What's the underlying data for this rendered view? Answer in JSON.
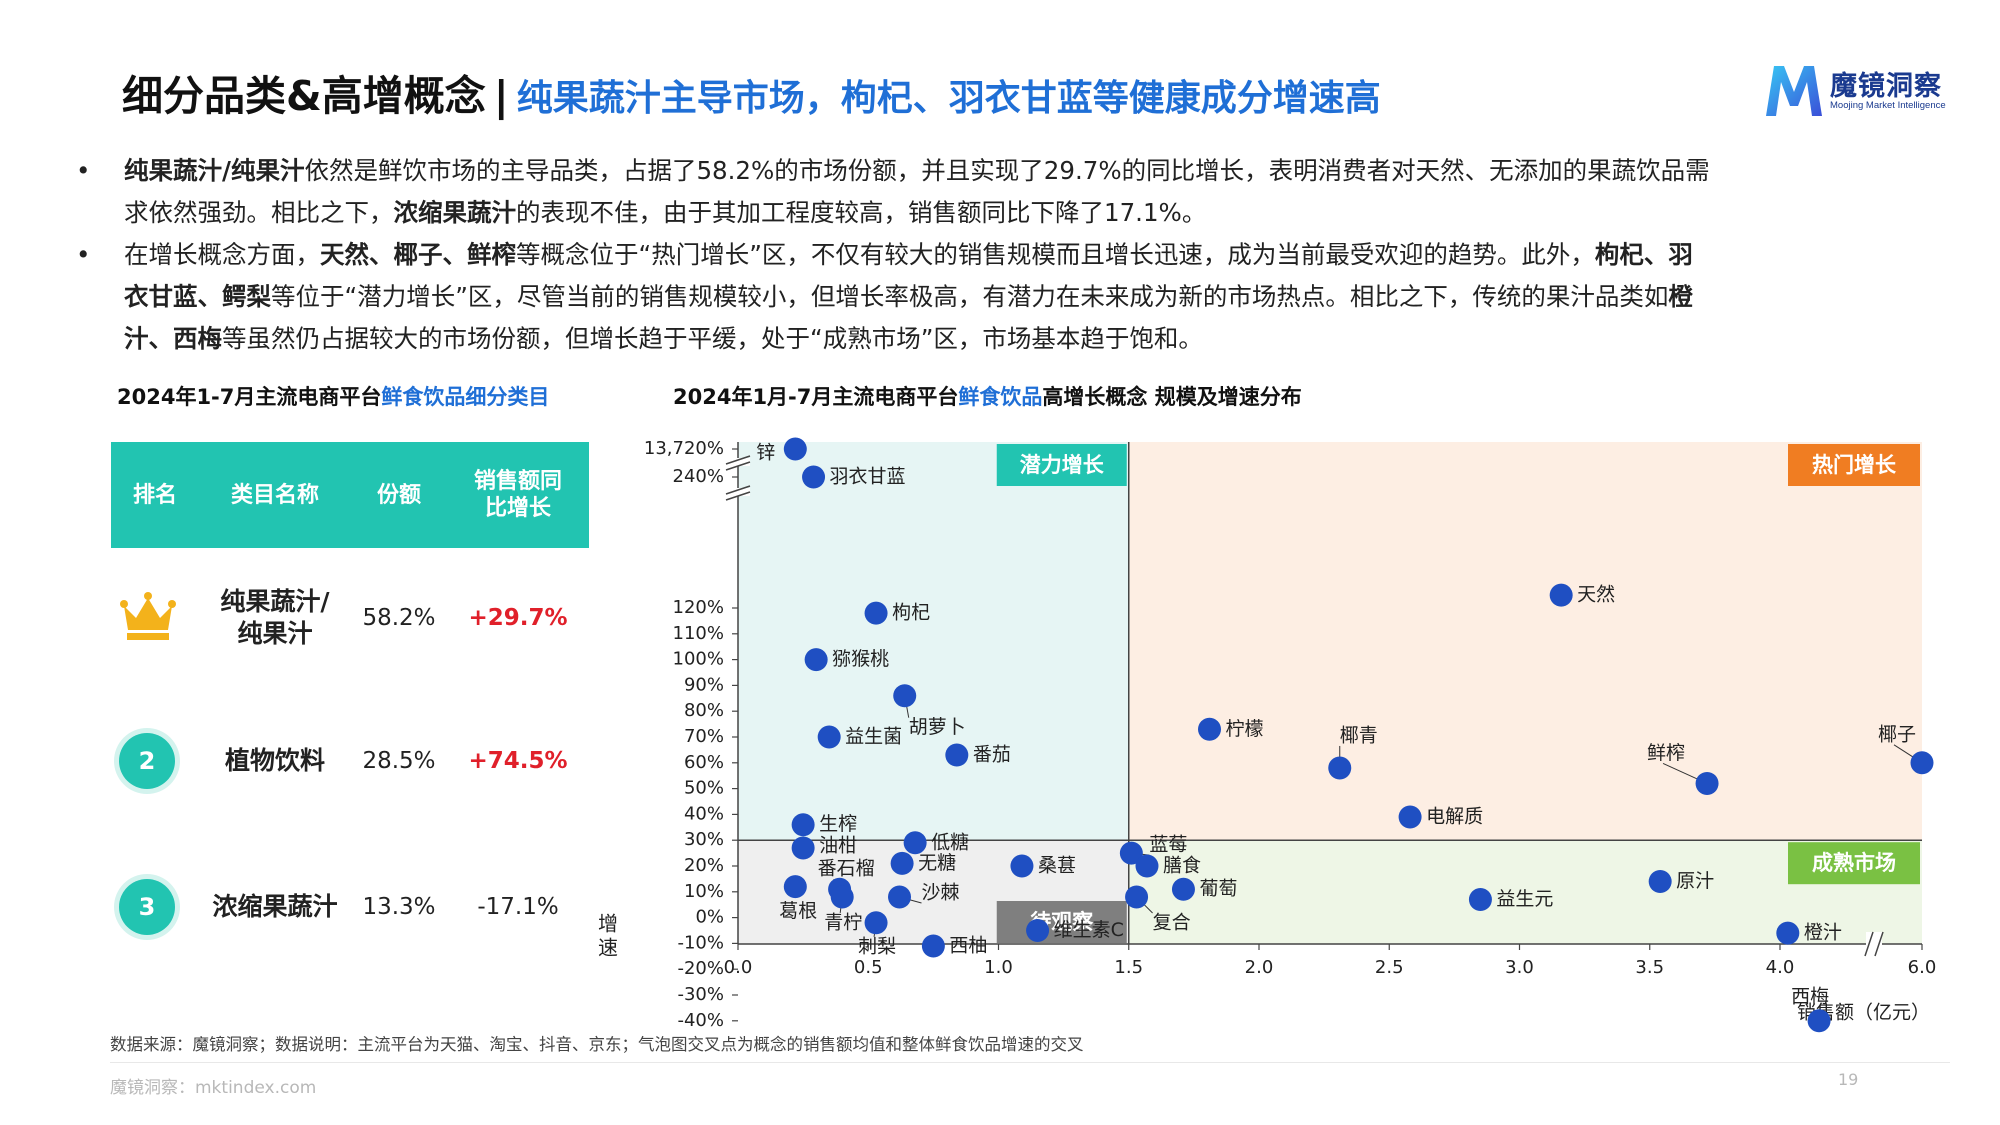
{
  "header": {
    "title_main": "细分品类&高增概念",
    "separator": "|",
    "title_sub": "纯果蔬汁主导市场，枸杞、羽衣甘蓝等健康成分增速高"
  },
  "logo": {
    "name": "魔镜洞察",
    "tagline": "Moojing Market Intelligence"
  },
  "bullets": [
    {
      "dot": "•",
      "lines": [
        [
          {
            "t": "纯果蔬汁/纯果汁",
            "b": true
          },
          {
            "t": "依然是鲜饮市场的主导品类，占据了58.2%的市场份额，并且实现了29.7%的同比增长，表明消费者对天然、无添加的果蔬饮品需"
          }
        ],
        [
          {
            "t": "求依然强劲。相比之下，"
          },
          {
            "t": "浓缩果蔬汁",
            "b": true
          },
          {
            "t": "的表现不佳，由于其加工程度较高，销售额同比下降了17.1%。"
          }
        ]
      ]
    },
    {
      "dot": "•",
      "lines": [
        [
          {
            "t": "在增长概念方面，"
          },
          {
            "t": "天然、椰子、鲜榨",
            "b": true
          },
          {
            "t": "等概念位于“热门增长”区，不仅有较大的销售规模而且增长迅速，成为当前最受欢迎的趋势。此外，"
          },
          {
            "t": "枸杞、羽",
            "b": true
          }
        ],
        [
          {
            "t": "衣甘蓝、鳄梨",
            "b": true
          },
          {
            "t": "等位于“潜力增长”区，尽管当前的销售规模较小，但增长率极高，有潜力在未来成为新的市场热点。相比之下，传统的果汁品类如"
          },
          {
            "t": "橙",
            "b": true
          }
        ],
        [
          {
            "t": "汁、西梅",
            "b": true
          },
          {
            "t": "等虽然仍占据较大的市场份额，但增长趋于平缓，处于“成熟市场”区，市场基本趋于饱和。"
          }
        ]
      ]
    }
  ],
  "table": {
    "title_prefix": "2024年1-7月主流电商平台",
    "title_highlight": "鲜食饮品细分类目",
    "headers": {
      "rank": "排名",
      "name": "类目名称",
      "share": "份额",
      "growth_line1": "销售额同",
      "growth_line2": "比增长"
    },
    "rows": [
      {
        "rank": "1",
        "rank_icon": "crown-icon",
        "name_line1": "纯果蔬汁/",
        "name_line2": "纯果汁",
        "share": "58.2%",
        "growth": "+29.7%",
        "positive": true
      },
      {
        "rank": "2",
        "name_line1": "植物饮料",
        "name_line2": "",
        "share": "28.5%",
        "growth": "+74.5%",
        "positive": true
      },
      {
        "rank": "3",
        "name_line1": "浓缩果蔬汁",
        "name_line2": "",
        "share": "13.3%",
        "growth": "-17.1%",
        "positive": false
      }
    ]
  },
  "chart_title": {
    "prefix": "2024年1月-7月主流电商平台",
    "highlight": "鲜食饮品",
    "suffix": "高增长概念 规模及增速分布"
  },
  "chart_data": {
    "type": "scatter",
    "title": "2024年1月-7月主流电商平台鲜食饮品高增长概念 规模及增速分布",
    "xlabel": "销售额（亿元）",
    "ylabel": "增速",
    "x_unit": "亿元",
    "y_unit": "%",
    "x_ticks": [
      "0.0",
      "0.5",
      "1.0",
      "1.5",
      "2.0",
      "2.5",
      "3.0",
      "3.5",
      "4.0",
      "6.0"
    ],
    "y_ticks": [
      "13,720%",
      "240%",
      "120%",
      "110%",
      "100%",
      "90%",
      "80%",
      "70%",
      "60%",
      "50%",
      "40%",
      "30%",
      "20%",
      "10%",
      "0%",
      "-10%",
      "-20%",
      "-30%",
      "-40%"
    ],
    "x_axis_break": "between 4.0 and 6.0",
    "y_axis_break": "between 120% and 240%, and between 240% and 13,720%",
    "divider": {
      "x": 1.5,
      "y": 30
    },
    "quadrants": [
      {
        "label": "潜力增长",
        "position": "top-left",
        "color": "#e6f5f4",
        "label_color": "#22c4b1"
      },
      {
        "label": "热门增长",
        "position": "top-right",
        "color": "#fdeee3",
        "label_color": "#f07d22"
      },
      {
        "label": "待观察",
        "position": "bottom-left",
        "color": "#efefef",
        "label_color": "#7f7f7f"
      },
      {
        "label": "成熟市场",
        "position": "bottom-right",
        "color": "#eef6e6",
        "label_color": "#7ac143"
      }
    ],
    "point_color": "#1f4fc2",
    "points": [
      {
        "name": "锌",
        "x": 0.22,
        "y": 13720
      },
      {
        "name": "羽衣甘蓝",
        "x": 0.29,
        "y": 240
      },
      {
        "name": "枸杞",
        "x": 0.53,
        "y": 118
      },
      {
        "name": "猕猴桃",
        "x": 0.3,
        "y": 100
      },
      {
        "name": "胡萝卜",
        "x": 0.64,
        "y": 86
      },
      {
        "name": "益生菌",
        "x": 0.35,
        "y": 70
      },
      {
        "name": "番茄",
        "x": 0.84,
        "y": 63
      },
      {
        "name": "生榨",
        "x": 0.25,
        "y": 36
      },
      {
        "name": "油柑",
        "x": 0.25,
        "y": 27
      },
      {
        "name": "低糖",
        "x": 0.68,
        "y": 29
      },
      {
        "name": "无糖",
        "x": 0.63,
        "y": 21
      },
      {
        "name": "番石榴",
        "x": 0.39,
        "y": 11
      },
      {
        "name": "葛根",
        "x": 0.22,
        "y": 12
      },
      {
        "name": "沙棘",
        "x": 0.62,
        "y": 8
      },
      {
        "name": "青柠",
        "x": 0.4,
        "y": 8
      },
      {
        "name": "刺梨",
        "x": 0.53,
        "y": -2
      },
      {
        "name": "西柚",
        "x": 0.75,
        "y": -11
      },
      {
        "name": "桑葚",
        "x": 1.09,
        "y": 20
      },
      {
        "name": "维生素C",
        "x": 1.15,
        "y": -5
      },
      {
        "name": "蓝莓",
        "x": 1.51,
        "y": 25
      },
      {
        "name": "膳食",
        "x": 1.57,
        "y": 20
      },
      {
        "name": "复合",
        "x": 1.53,
        "y": 8
      },
      {
        "name": "葡萄",
        "x": 1.71,
        "y": 11
      },
      {
        "name": "柠檬",
        "x": 1.81,
        "y": 73
      },
      {
        "name": "椰青",
        "x": 2.31,
        "y": 58
      },
      {
        "name": "电解质",
        "x": 2.58,
        "y": 39
      },
      {
        "name": "天然",
        "x": 3.16,
        "y": 125
      },
      {
        "name": "鲜榨",
        "x": 3.72,
        "y": 52
      },
      {
        "name": "益生元",
        "x": 2.85,
        "y": 7
      },
      {
        "name": "原汁",
        "x": 3.54,
        "y": 14
      },
      {
        "name": "橙汁",
        "x": 4.03,
        "y": -6
      },
      {
        "name": "西梅",
        "x": 4.15,
        "y": -40
      },
      {
        "name": "椰子",
        "x": 6.0,
        "y": 60
      }
    ]
  },
  "footnote": "数据来源：魔镜洞察；数据说明：主流平台为天猫、淘宝、抖音、京东；气泡图交叉点为概念的销售额均值和整体鲜食饮品增速的交叉",
  "footer": {
    "source": "魔镜洞察：mktindex.com",
    "page": "19"
  }
}
